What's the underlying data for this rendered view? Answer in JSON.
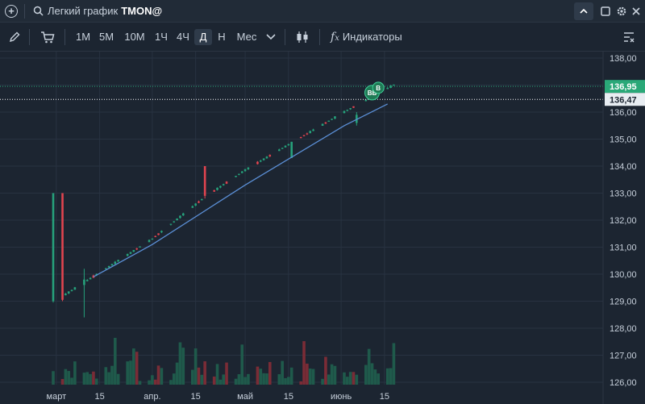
{
  "titlebar": {
    "title": "Легкий график",
    "ticker": "TMON@"
  },
  "toolbar": {
    "timeframes": [
      "1М",
      "5М",
      "10М",
      "1Ч",
      "4Ч",
      "Д",
      "Н",
      "Мес"
    ],
    "active_timeframe": "Д",
    "indicators_label": "Индикаторы"
  },
  "colors": {
    "background": "#1c2531",
    "up": "#26a17b",
    "down": "#e0444f",
    "line": "#5b8fd6",
    "last_price": "#2aa878",
    "prev_price": "#ffffff"
  },
  "chart_data": {
    "type": "candlestick",
    "y_axis": {
      "min": 126,
      "max": 138,
      "ticks": [
        "138,00",
        "137,00",
        "136,00",
        "135,00",
        "134,00",
        "133,00",
        "132,00",
        "131,00",
        "130,00",
        "129,00",
        "128,00",
        "127,00",
        "126,00"
      ]
    },
    "x_axis": {
      "labels": [
        "март",
        "15",
        "апр.",
        "15",
        "май",
        "15",
        "июнь",
        "15"
      ]
    },
    "last_price_label": "136,95",
    "prev_price_label": "136,47",
    "markers": [
      "BB",
      "B"
    ],
    "anchor_candles": [
      {
        "date": "2025-02-28",
        "open": 129.0,
        "close": 133.0,
        "low": 128.95,
        "high": 133.0
      },
      {
        "date": "2025-03-03",
        "open": 133.0,
        "close": 129.05,
        "low": 129.0,
        "high": 133.0
      },
      {
        "date": "2025-03-10",
        "open": 129.6,
        "close": 129.8,
        "low": 128.4,
        "high": 130.2
      },
      {
        "date": "2025-04-18",
        "open": 134.0,
        "close": 132.9,
        "low": 132.8,
        "high": 134.0
      },
      {
        "date": "2025-05-16",
        "open": 134.3,
        "close": 134.9,
        "low": 134.3,
        "high": 134.9
      },
      {
        "date": "2025-06-06",
        "open": 135.6,
        "close": 135.9,
        "low": 135.5,
        "high": 136.0
      }
    ],
    "ma_line": [
      {
        "date": "2025-03-13",
        "value": 129.9
      },
      {
        "date": "2025-04-01",
        "value": 131.1
      },
      {
        "date": "2025-05-01",
        "value": 133.3
      },
      {
        "date": "2025-06-02",
        "value": 135.5
      },
      {
        "date": "2025-06-16",
        "value": 136.3
      }
    ]
  }
}
